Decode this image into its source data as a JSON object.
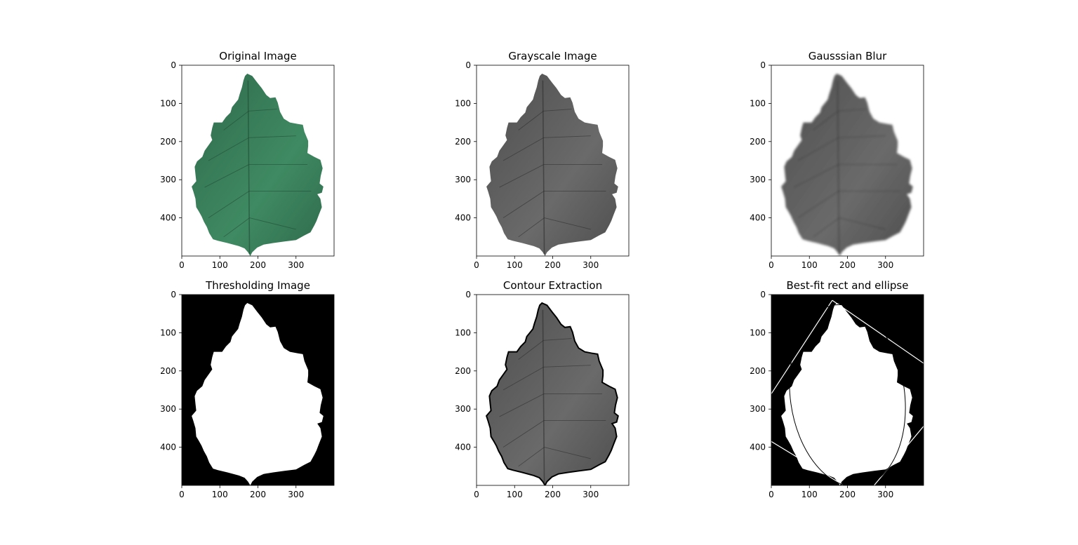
{
  "figure": {
    "panels": [
      {
        "id": "original",
        "title": "Original Image",
        "image_kind": "color-leaf",
        "background": "white"
      },
      {
        "id": "grayscale",
        "title": "Grayscale Image",
        "image_kind": "gray-leaf",
        "background": "white"
      },
      {
        "id": "blur",
        "title": "Gausssian Blur",
        "image_kind": "blurred-gray-leaf",
        "background": "white"
      },
      {
        "id": "threshold",
        "title": "Thresholding Image",
        "image_kind": "binary-leaf",
        "background": "black"
      },
      {
        "id": "contour",
        "title": "Contour Extraction",
        "image_kind": "gray-leaf-with-contour",
        "background": "white"
      },
      {
        "id": "bestfit",
        "title": "Best-fit rect and ellipse",
        "image_kind": "binary-leaf-with-fit-lines",
        "background": "black"
      }
    ],
    "x_ticks": [
      "0",
      "100",
      "200",
      "300"
    ],
    "y_ticks": [
      "0",
      "100",
      "200",
      "300",
      "400"
    ],
    "image_extent": {
      "width": 400,
      "height": 500
    },
    "colors": {
      "leaf_green": "#2f6a4c",
      "leaf_green_light": "#3f8a62",
      "leaf_gray": "#4e4e4e",
      "leaf_gray_light": "#6a6a6a",
      "blur_gray": "#444444",
      "contour": "#000000",
      "binary_fg": "#ffffff",
      "binary_bg": "#000000"
    }
  }
}
